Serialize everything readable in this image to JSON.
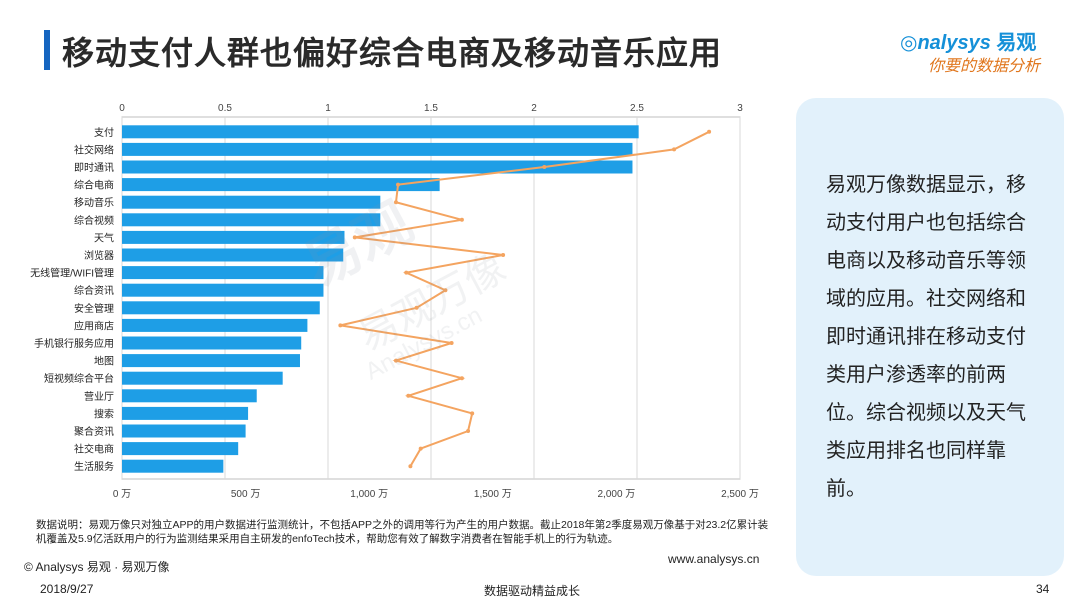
{
  "title": "移动支付人群也偏好综合电商及移动音乐应用",
  "logo": {
    "brand": "nalysys",
    "brand_prefix": "◎",
    "brand_cn": "易观",
    "slogan": "你要的数据分析"
  },
  "watermark": {
    "main": "易观",
    "sub": "易观万像",
    "url": "Analysys.cn"
  },
  "chart_data": {
    "type": "bar",
    "orientation": "horizontal",
    "categories": [
      "支付",
      "社交网络",
      "即时通讯",
      "综合电商",
      "移动音乐",
      "综合视频",
      "天气",
      "浏览器",
      "无线管理/WIFI管理",
      "综合资讯",
      "安全管理",
      "应用商店",
      "手机银行服务应用",
      "地图",
      "短视频综合平台",
      "营业厅",
      "搜索",
      "聚合资讯",
      "社交电商",
      "生活服务"
    ],
    "series": [
      {
        "name": "用户规模",
        "axis": "bottom",
        "unit": "万",
        "color": "#1e9ee6",
        "values": [
          2090,
          2065,
          2065,
          1285,
          1045,
          1045,
          900,
          895,
          815,
          815,
          800,
          750,
          725,
          720,
          650,
          545,
          510,
          500,
          470,
          410
        ]
      },
      {
        "name": "渗透率",
        "axis": "top",
        "color": "#f4a460",
        "values": [
          2.85,
          2.68,
          2.05,
          1.34,
          1.33,
          1.65,
          1.13,
          1.85,
          1.38,
          1.57,
          1.43,
          1.06,
          1.6,
          1.33,
          1.65,
          1.39,
          1.7,
          1.68,
          1.45,
          1.4
        ]
      }
    ],
    "x_bottom": {
      "min": 0,
      "max": 2500,
      "ticks": [
        "0 万",
        "500 万",
        "1,000 万",
        "1,500 万",
        "2,000 万",
        "2,500 万"
      ]
    },
    "x_top": {
      "min": 0,
      "max": 3,
      "ticks": [
        "0",
        "0.5",
        "1",
        "1.5",
        "2",
        "2.5",
        "3"
      ]
    }
  },
  "note": "易观万像数据显示，移动支付用户也包括综合电商以及移动音乐等领域的应用。社交网络和即时通讯排在移动支付类用户渗透率的前两位。综合视频以及天气类应用排名也同样靠前。",
  "footnote": "数据说明：易观万像只对独立APP的用户数据进行监测统计，不包括APP之外的调用等行为产生的用户数据。截止2018年第2季度易观万像基于对23.2亿累计装机覆盖及5.9亿活跃用户的行为监测结果采用自主研发的enfoTech技术，帮助您有效了解数字消费者在智能手机上的行为轨迹。",
  "copyright": "© Analysys 易观 · 易观万像",
  "website": "www.analysys.cn",
  "date": "2018/9/27",
  "footer_slogan": "数据驱动精益成长",
  "page_number": "34"
}
